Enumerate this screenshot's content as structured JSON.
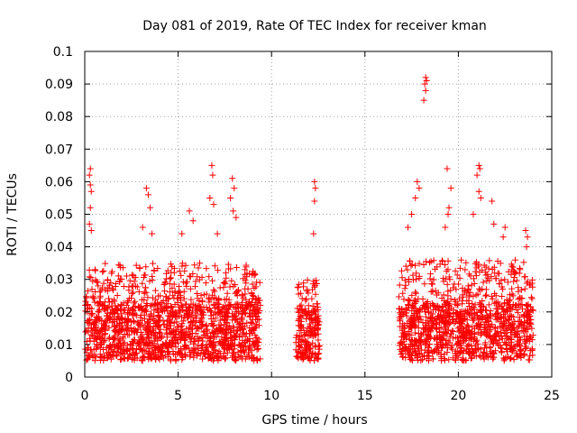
{
  "chart_data": {
    "type": "scatter",
    "title": "Day 081 of 2019, Rate Of TEC Index for receiver kman",
    "xlabel": "GPS time / hours",
    "ylabel": "ROTI / TECUs",
    "xlim": [
      0,
      25
    ],
    "ylim": [
      0,
      0.1
    ],
    "grid": true,
    "marker": "+",
    "color": "#ff0000",
    "x_ticks": [
      {
        "value": 0,
        "label": "0"
      },
      {
        "value": 5,
        "label": "5"
      },
      {
        "value": 10,
        "label": "10"
      },
      {
        "value": 15,
        "label": "15"
      },
      {
        "value": 20,
        "label": "20"
      },
      {
        "value": 25,
        "label": "25"
      }
    ],
    "y_ticks": [
      {
        "value": 0,
        "label": "0"
      },
      {
        "value": 0.01,
        "label": "0.01"
      },
      {
        "value": 0.02,
        "label": "0.02"
      },
      {
        "value": 0.03,
        "label": "0.03"
      },
      {
        "value": 0.04,
        "label": "0.04"
      },
      {
        "value": 0.05,
        "label": "0.05"
      },
      {
        "value": 0.06,
        "label": "0.06"
      },
      {
        "value": 0.07,
        "label": "0.07"
      },
      {
        "value": 0.08,
        "label": "0.08"
      },
      {
        "value": 0.09,
        "label": "0.09"
      },
      {
        "value": 0.1,
        "label": "0.1"
      }
    ],
    "data_segments": [
      {
        "x_range": [
          0.0,
          9.4
        ],
        "base_range": [
          0.005,
          0.022
        ],
        "typical_max": 0.035
      },
      {
        "x_range": [
          11.3,
          12.6
        ],
        "base_range": [
          0.005,
          0.02
        ],
        "typical_max": 0.03
      },
      {
        "x_range": [
          16.8,
          24.0
        ],
        "base_range": [
          0.005,
          0.022
        ],
        "typical_max": 0.036
      }
    ],
    "notable_points": [
      {
        "x": 0.3,
        "y": 0.064
      },
      {
        "x": 0.25,
        "y": 0.062
      },
      {
        "x": 0.3,
        "y": 0.059
      },
      {
        "x": 0.35,
        "y": 0.057
      },
      {
        "x": 0.3,
        "y": 0.052
      },
      {
        "x": 0.25,
        "y": 0.047
      },
      {
        "x": 0.35,
        "y": 0.045
      },
      {
        "x": 3.3,
        "y": 0.058
      },
      {
        "x": 3.4,
        "y": 0.056
      },
      {
        "x": 3.5,
        "y": 0.052
      },
      {
        "x": 3.1,
        "y": 0.046
      },
      {
        "x": 3.6,
        "y": 0.044
      },
      {
        "x": 5.6,
        "y": 0.051
      },
      {
        "x": 5.8,
        "y": 0.048
      },
      {
        "x": 5.2,
        "y": 0.044
      },
      {
        "x": 6.8,
        "y": 0.065
      },
      {
        "x": 6.85,
        "y": 0.062
      },
      {
        "x": 6.7,
        "y": 0.055
      },
      {
        "x": 6.9,
        "y": 0.053
      },
      {
        "x": 7.1,
        "y": 0.044
      },
      {
        "x": 7.9,
        "y": 0.061
      },
      {
        "x": 8.0,
        "y": 0.058
      },
      {
        "x": 7.8,
        "y": 0.055
      },
      {
        "x": 7.95,
        "y": 0.051
      },
      {
        "x": 8.1,
        "y": 0.049
      },
      {
        "x": 12.3,
        "y": 0.06
      },
      {
        "x": 12.35,
        "y": 0.058
      },
      {
        "x": 12.3,
        "y": 0.054
      },
      {
        "x": 12.25,
        "y": 0.044
      },
      {
        "x": 17.8,
        "y": 0.06
      },
      {
        "x": 17.9,
        "y": 0.058
      },
      {
        "x": 17.7,
        "y": 0.055
      },
      {
        "x": 17.5,
        "y": 0.05
      },
      {
        "x": 17.3,
        "y": 0.046
      },
      {
        "x": 18.25,
        "y": 0.092
      },
      {
        "x": 18.3,
        "y": 0.091
      },
      {
        "x": 18.2,
        "y": 0.09
      },
      {
        "x": 18.25,
        "y": 0.088
      },
      {
        "x": 18.15,
        "y": 0.085
      },
      {
        "x": 19.4,
        "y": 0.064
      },
      {
        "x": 19.6,
        "y": 0.058
      },
      {
        "x": 19.5,
        "y": 0.052
      },
      {
        "x": 19.45,
        "y": 0.05
      },
      {
        "x": 19.3,
        "y": 0.046
      },
      {
        "x": 21.1,
        "y": 0.065
      },
      {
        "x": 21.15,
        "y": 0.064
      },
      {
        "x": 21.0,
        "y": 0.062
      },
      {
        "x": 21.1,
        "y": 0.057
      },
      {
        "x": 21.2,
        "y": 0.055
      },
      {
        "x": 20.8,
        "y": 0.05
      },
      {
        "x": 21.8,
        "y": 0.054
      },
      {
        "x": 21.9,
        "y": 0.047
      },
      {
        "x": 23.6,
        "y": 0.045
      },
      {
        "x": 23.7,
        "y": 0.043
      },
      {
        "x": 23.65,
        "y": 0.04
      },
      {
        "x": 22.5,
        "y": 0.046
      },
      {
        "x": 22.4,
        "y": 0.043
      }
    ]
  }
}
